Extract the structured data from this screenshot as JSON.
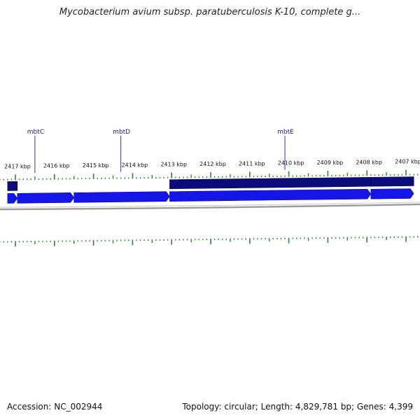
{
  "title": "Mycobacterium avium subsp. paratuberculosis K-10, complete g...",
  "footer": {
    "accession": "Accession: NC_002944",
    "stats": "Topology: circular; Length: 4,829,781 bp; Genes: 4,399"
  },
  "colors": {
    "background": "#ffffff",
    "gene_forward": "#1515e8",
    "gene_reverse": "#0b0b7a",
    "backbone": "#9a9a9a",
    "ticks": "#2a8a2a",
    "gene_label": "#1a1aa8"
  },
  "axis": {
    "unit": "kbp",
    "direction": "decreasing-left-to-right",
    "tick_labels": [
      {
        "kbp": 2417,
        "label": "2417 kbp"
      },
      {
        "kbp": 2416,
        "label": "2416 kbp"
      },
      {
        "kbp": 2415,
        "label": "2415 kbp"
      },
      {
        "kbp": 2414,
        "label": "2414 kbp"
      },
      {
        "kbp": 2413,
        "label": "2413 kbp"
      },
      {
        "kbp": 2412,
        "label": "2412 kbp"
      },
      {
        "kbp": 2411,
        "label": "2411 kbp"
      },
      {
        "kbp": 2410,
        "label": "2410 kbp"
      },
      {
        "kbp": 2409,
        "label": "2409 kbp"
      },
      {
        "kbp": 2408,
        "label": "2408 kbp"
      },
      {
        "kbp": 2407,
        "label": "2407 kbp"
      }
    ]
  },
  "gene_labels": [
    {
      "name": "mbtC",
      "kbp": 2416.5
    },
    {
      "name": "mbtD",
      "kbp": 2414.3
    },
    {
      "name": "mbtE",
      "kbp": 2410.1
    }
  ],
  "genes": [
    {
      "strand": "reverse",
      "start_kbp": 2417.2,
      "end_kbp": 2416.95
    },
    {
      "strand": "reverse",
      "start_kbp": 2413.05,
      "end_kbp": 2407.9
    },
    {
      "strand": "reverse",
      "start_kbp": 2407.9,
      "end_kbp": 2406.8
    },
    {
      "strand": "forward",
      "start_kbp": 2417.2,
      "end_kbp": 2416.95
    },
    {
      "strand": "forward",
      "start_kbp": 2416.95,
      "end_kbp": 2415.5
    },
    {
      "strand": "forward",
      "start_kbp": 2415.5,
      "end_kbp": 2413.05
    },
    {
      "strand": "forward",
      "start_kbp": 2413.05,
      "end_kbp": 2407.9
    },
    {
      "strand": "forward",
      "start_kbp": 2407.9,
      "end_kbp": 2406.8
    }
  ]
}
